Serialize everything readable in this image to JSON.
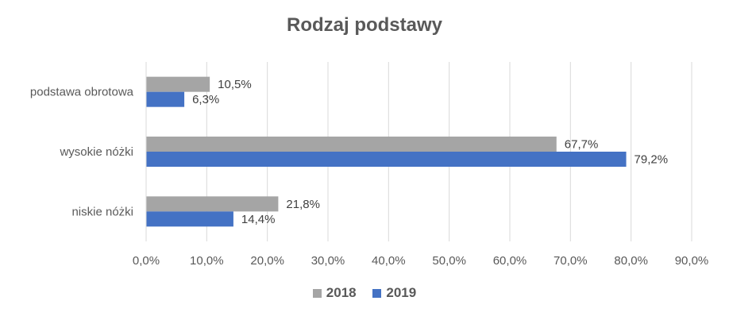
{
  "chart_data": {
    "type": "bar",
    "orientation": "horizontal",
    "title": "Rodzaj podstawy",
    "categories": [
      "podstawa obrotowa",
      "wysokie nóżki",
      "niskie nóżki"
    ],
    "series": [
      {
        "name": "2018",
        "color": "#a5a5a5",
        "values": [
          10.5,
          67.7,
          21.8
        ],
        "labels": [
          "10,5%",
          "67,7%",
          "21,8%"
        ]
      },
      {
        "name": "2019",
        "color": "#4472c4",
        "values": [
          6.3,
          79.2,
          14.4
        ],
        "labels": [
          "6,3%",
          "79,2%",
          "14,4%"
        ]
      }
    ],
    "xlim": [
      0,
      90
    ],
    "xticks": [
      0,
      10,
      20,
      30,
      40,
      50,
      60,
      70,
      80,
      90
    ],
    "xtick_labels": [
      "0,0%",
      "10,0%",
      "20,0%",
      "30,0%",
      "40,0%",
      "50,0%",
      "60,0%",
      "70,0%",
      "80,0%",
      "90,0%"
    ],
    "grid": true,
    "legend_position": "bottom"
  }
}
